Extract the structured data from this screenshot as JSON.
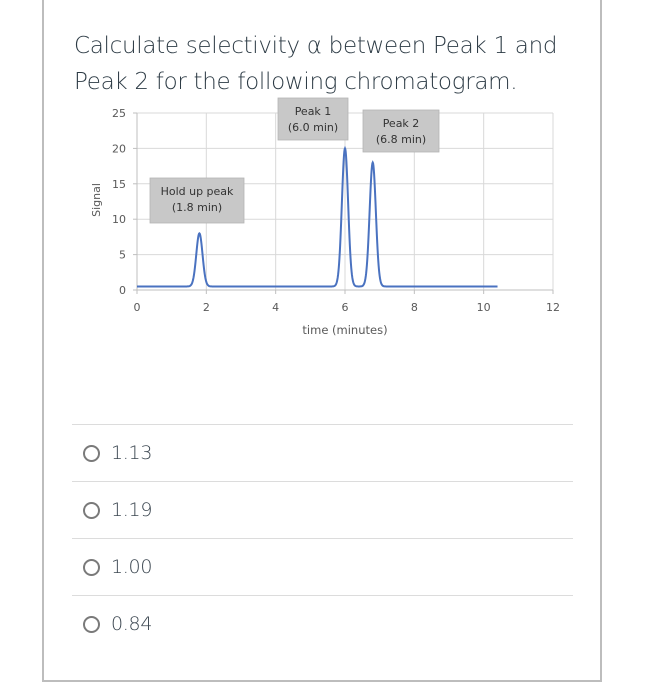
{
  "question": {
    "text": "Calculate selectivity α between Peak 1 and Peak 2 for the following chromatogram."
  },
  "chart_data": {
    "type": "line",
    "title": "",
    "xlabel": "time (minutes)",
    "ylabel": "Signal",
    "xlim": [
      0,
      12
    ],
    "ylim": [
      0,
      25
    ],
    "x_ticks": [
      0,
      2,
      4,
      6,
      8,
      10,
      12
    ],
    "y_ticks": [
      0,
      5,
      10,
      15,
      20,
      25
    ],
    "grid": true,
    "legend": "none",
    "line_color": "#4a72c0",
    "series": [
      {
        "name": "Signal",
        "baseline": 0.5,
        "x_range": [
          0,
          10.4
        ],
        "peaks": [
          {
            "time": 1.8,
            "height": 8.0
          },
          {
            "time": 6.0,
            "height": 20.0
          },
          {
            "time": 6.8,
            "height": 18.0
          }
        ]
      }
    ],
    "annotations": [
      {
        "label": "Hold up peak",
        "sub": "(1.8 min)"
      },
      {
        "label": "Peak 1",
        "sub": "(6.0 min)"
      },
      {
        "label": "Peak 2",
        "sub": "(6.8 min)"
      }
    ]
  },
  "answers": [
    {
      "label": "1.13",
      "selected": false
    },
    {
      "label": "1.19",
      "selected": false
    },
    {
      "label": "1.00",
      "selected": false
    },
    {
      "label": "0.84",
      "selected": false
    }
  ]
}
